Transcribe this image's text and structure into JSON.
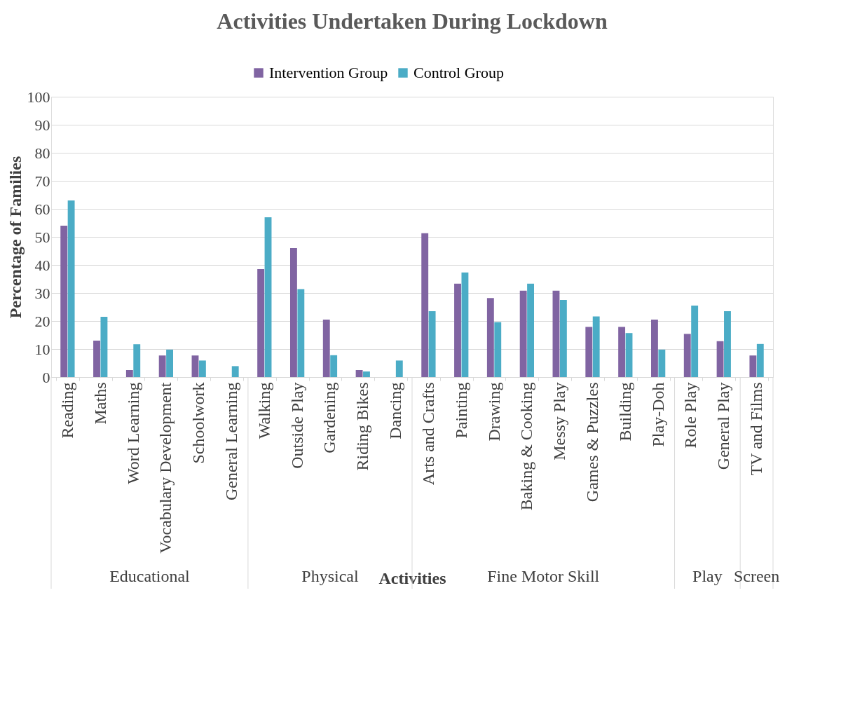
{
  "chart_data": {
    "type": "bar",
    "title": "Activities Undertaken During Lockdown",
    "xlabel": "Activities",
    "ylabel": "Percentage of Families",
    "categories": [
      "Reading",
      "Maths",
      "Word Learning",
      "Vocabulary Development",
      "Schoolwork",
      "General Learning",
      "Walking",
      "Outside Play",
      "Gardening",
      "Riding Bikes",
      "Dancing",
      "Arts and Crafts",
      "Painting",
      "Drawing",
      "Baking & Cooking",
      "Messy Play",
      "Games & Puzzles",
      "Building",
      "Play-Doh",
      "Role Play",
      "General Play",
      "TV and Films"
    ],
    "series": [
      {
        "name": "Intervention Group",
        "color": "#8064a2",
        "values": [
          54,
          13,
          2.5,
          7.7,
          7.7,
          0,
          38.5,
          46,
          20.5,
          2.5,
          0,
          51.3,
          33.3,
          28.2,
          30.8,
          30.8,
          17.9,
          17.9,
          20.5,
          15.4,
          12.8,
          7.7
        ]
      },
      {
        "name": "Control Group",
        "color": "#4bacc6",
        "values": [
          63,
          21.5,
          11.7,
          9.8,
          5.9,
          3.9,
          57,
          31.4,
          7.8,
          2,
          5.9,
          23.5,
          37.3,
          19.6,
          33.3,
          27.5,
          21.6,
          15.7,
          9.8,
          25.5,
          23.5,
          11.8
        ]
      }
    ],
    "annotations": [
      "Educational",
      "Physical",
      "Fine Motor Skill",
      "Play",
      "Screen"
    ],
    "ylim": [
      0,
      100
    ],
    "yticks": [
      0,
      10,
      20,
      30,
      40,
      50,
      60,
      70,
      80,
      90,
      100
    ],
    "grid": "y",
    "legend": "top"
  }
}
